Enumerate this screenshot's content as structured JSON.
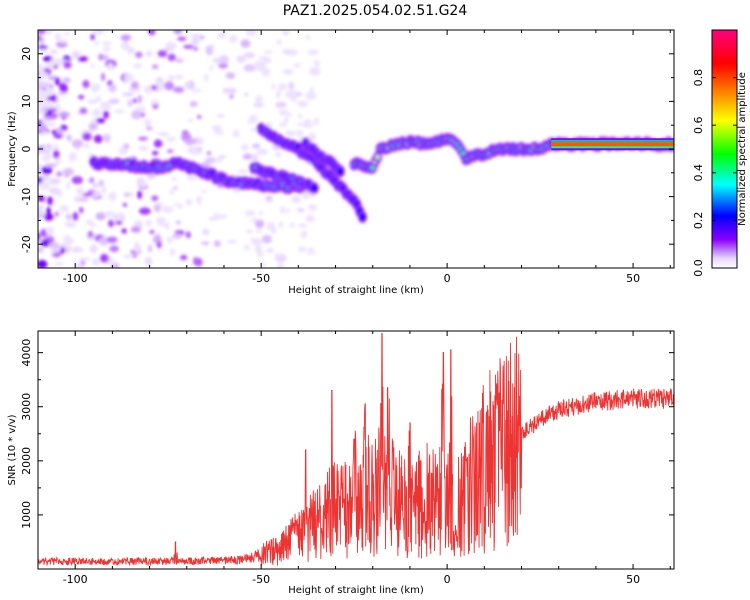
{
  "title": "PAZ1.2025.054.02.51.G24",
  "chart_data": [
    {
      "type": "heatmap",
      "xlabel": "Height of straight line (km)",
      "ylabel": "Frequency (Hz)",
      "xlim": [
        -110,
        61
      ],
      "ylim": [
        -25,
        25
      ],
      "xticks": [
        -100,
        -50,
        0,
        50
      ],
      "xtick_labels": [
        "-100",
        "-50",
        "0",
        "50"
      ],
      "yticks": [
        -20,
        -10,
        0,
        10,
        20
      ],
      "ytick_labels": [
        "-20",
        "-10",
        "0",
        "10",
        "20"
      ],
      "colorbar": {
        "label": "Normalized spectral amplitude",
        "range": [
          0,
          1
        ],
        "ticks": [
          0.0,
          0.2,
          0.4,
          0.6,
          0.8
        ],
        "tick_labels": [
          "0.0",
          "0.2",
          "0.4",
          "0.6",
          "0.8"
        ],
        "colormap": [
          "#ffffff",
          "#8800ff",
          "#0000ff",
          "#00ffff",
          "#00ff00",
          "#ffff00",
          "#ff8000",
          "#ff0000",
          "#ff0080"
        ]
      },
      "ridges": [
        {
          "points": [
            [
              -95,
              -3
            ],
            [
              -85,
              -3.5
            ],
            [
              -78,
              -4
            ],
            [
              -72,
              -3
            ],
            [
              -65,
              -5
            ],
            [
              -58,
              -7
            ],
            [
              -50,
              -7.5
            ],
            [
              -44,
              -8
            ],
            [
              -38,
              -8
            ]
          ],
          "amplitude": 0.35
        },
        {
          "points": [
            [
              -52,
              -4
            ],
            [
              -46,
              -5.5
            ],
            [
              -40,
              -7
            ],
            [
              -35,
              -8
            ]
          ],
          "amplitude": 0.3
        },
        {
          "points": [
            [
              -50,
              4
            ],
            [
              -45,
              2
            ],
            [
              -40,
              0
            ],
            [
              -35,
              -3
            ],
            [
              -30,
              -7
            ],
            [
              -25,
              -11
            ],
            [
              -22,
              -15
            ]
          ],
          "amplitude": 0.25
        },
        {
          "points": [
            [
              -38,
              1
            ],
            [
              -33,
              -2
            ],
            [
              -28,
              -5
            ]
          ],
          "amplitude": 0.25
        },
        {
          "points": [
            [
              -25,
              -3
            ],
            [
              -20,
              -4
            ],
            [
              -18,
              0
            ],
            [
              -12,
              1.5
            ],
            [
              -5,
              1
            ],
            [
              0,
              2
            ],
            [
              3,
              1
            ],
            [
              5,
              -2
            ],
            [
              10,
              -1
            ],
            [
              15,
              0
            ],
            [
              22,
              0
            ],
            [
              28,
              0.5
            ]
          ],
          "amplitude": 0.55
        },
        {
          "points": [
            [
              28,
              1
            ],
            [
              40,
              1
            ],
            [
              50,
              1
            ],
            [
              61,
              1
            ]
          ],
          "amplitude": 0.78
        }
      ]
    },
    {
      "type": "line",
      "xlabel": "Height of straight line (km)",
      "ylabel": "SNR (10 * v/v)",
      "xlim": [
        -110,
        61
      ],
      "ylim": [
        0,
        4400
      ],
      "xticks": [
        -100,
        -50,
        0,
        50
      ],
      "xtick_labels": [
        "-100",
        "-50",
        "0",
        "50"
      ],
      "yticks": [
        1000,
        2000,
        3000,
        4000
      ],
      "ytick_labels": [
        "1000",
        "2000",
        "3000",
        "4000"
      ],
      "color": "#ee3333",
      "envelope_x": [
        -110,
        -90,
        -70,
        -55,
        -45,
        -38,
        -30,
        -25,
        -18,
        -10,
        -5,
        0,
        2,
        10,
        15,
        20,
        25,
        30,
        40,
        50,
        61
      ],
      "envelope_y": [
        150,
        150,
        150,
        180,
        350,
        700,
        1100,
        1250,
        1450,
        1100,
        1300,
        1300,
        1200,
        1900,
        2200,
        2500,
        2750,
        2950,
        3100,
        3150,
        3150
      ],
      "spikes": [
        [
          -73,
          500
        ],
        [
          -38,
          2200
        ],
        [
          -31,
          3300
        ],
        [
          -25,
          2400
        ],
        [
          -22,
          3050
        ],
        [
          -17.5,
          4350
        ],
        [
          -16,
          3350
        ],
        [
          -10,
          2700
        ],
        [
          -1,
          4000
        ],
        [
          1,
          4050
        ],
        [
          14,
          3250
        ]
      ]
    }
  ]
}
